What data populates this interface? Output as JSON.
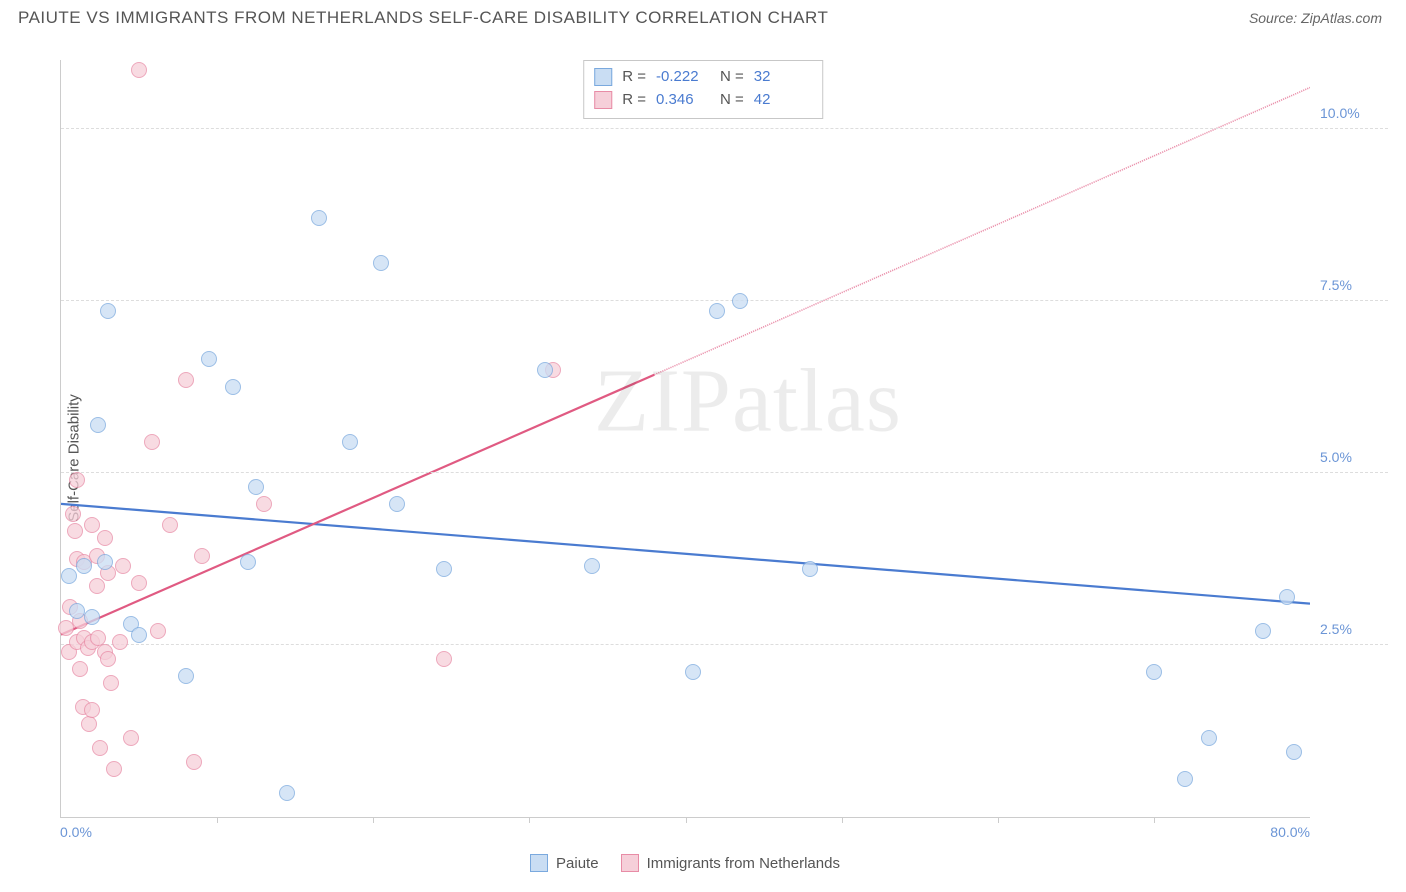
{
  "header": {
    "title": "PAIUTE VS IMMIGRANTS FROM NETHERLANDS SELF-CARE DISABILITY CORRELATION CHART",
    "source": "Source: ZipAtlas.com"
  },
  "chart": {
    "type": "scatter",
    "ylabel": "Self-Care Disability",
    "watermark": "ZIPatlas",
    "background_color": "#ffffff",
    "grid_color": "#dddddd",
    "axis_color": "#cccccc",
    "tick_label_color": "#6b95d6",
    "text_color": "#555555",
    "xlim": [
      0,
      80
    ],
    "ylim": [
      0,
      11
    ],
    "xticks": [
      {
        "pos": 0,
        "label": "0.0%"
      },
      {
        "pos": 80,
        "label": "80.0%"
      }
    ],
    "xtick_marks": [
      10,
      20,
      30,
      40,
      50,
      60,
      70
    ],
    "yticks": [
      {
        "pos": 2.5,
        "label": "2.5%"
      },
      {
        "pos": 5.0,
        "label": "5.0%"
      },
      {
        "pos": 7.5,
        "label": "7.5%"
      },
      {
        "pos": 10.0,
        "label": "10.0%"
      }
    ],
    "series": [
      {
        "name": "Paiute",
        "fill": "#c9ddf3",
        "stroke": "#7aa9de",
        "line_color": "#4a7bd0",
        "r_value": "-0.222",
        "n_value": "32",
        "trend": {
          "x1": 0,
          "y1": 4.55,
          "x2": 80,
          "y2": 3.1,
          "dash_from_x": 80
        },
        "points": [
          [
            0.5,
            3.5
          ],
          [
            1.0,
            3.0
          ],
          [
            1.5,
            3.65
          ],
          [
            2.0,
            2.9
          ],
          [
            2.4,
            5.7
          ],
          [
            2.8,
            3.7
          ],
          [
            3.0,
            7.35
          ],
          [
            4.5,
            2.8
          ],
          [
            5.0,
            2.65
          ],
          [
            8.0,
            2.05
          ],
          [
            9.5,
            6.65
          ],
          [
            11.0,
            6.25
          ],
          [
            12.0,
            3.7
          ],
          [
            12.5,
            4.8
          ],
          [
            14.5,
            0.35
          ],
          [
            16.5,
            8.7
          ],
          [
            18.5,
            5.45
          ],
          [
            20.5,
            8.05
          ],
          [
            21.5,
            4.55
          ],
          [
            24.5,
            3.6
          ],
          [
            31.0,
            6.5
          ],
          [
            34.0,
            3.65
          ],
          [
            40.5,
            2.1
          ],
          [
            42.0,
            7.35
          ],
          [
            43.5,
            7.5
          ],
          [
            48.0,
            3.6
          ],
          [
            70.0,
            2.1
          ],
          [
            72.0,
            0.55
          ],
          [
            73.5,
            1.15
          ],
          [
            77.0,
            2.7
          ],
          [
            78.5,
            3.2
          ],
          [
            79.0,
            0.95
          ]
        ]
      },
      {
        "name": "Immigrants from Netherlands",
        "fill": "#f6cfd9",
        "stroke": "#e88ca6",
        "line_color": "#e05a82",
        "r_value": "0.346",
        "n_value": "42",
        "trend": {
          "x1": 0,
          "y1": 2.65,
          "x2": 80,
          "y2": 10.6,
          "dash_from_x": 38
        },
        "points": [
          [
            0.3,
            2.75
          ],
          [
            0.5,
            2.4
          ],
          [
            0.6,
            3.05
          ],
          [
            0.8,
            4.4
          ],
          [
            0.9,
            4.15
          ],
          [
            1.0,
            2.55
          ],
          [
            1.0,
            4.9
          ],
          [
            1.0,
            3.75
          ],
          [
            1.2,
            2.85
          ],
          [
            1.2,
            2.15
          ],
          [
            1.4,
            1.6
          ],
          [
            1.5,
            2.6
          ],
          [
            1.5,
            3.7
          ],
          [
            1.7,
            2.45
          ],
          [
            1.8,
            1.35
          ],
          [
            2.0,
            2.55
          ],
          [
            2.0,
            4.25
          ],
          [
            2.0,
            1.55
          ],
          [
            2.3,
            3.8
          ],
          [
            2.3,
            3.35
          ],
          [
            2.4,
            2.6
          ],
          [
            2.5,
            1.0
          ],
          [
            2.8,
            2.4
          ],
          [
            2.8,
            4.05
          ],
          [
            3.0,
            3.55
          ],
          [
            3.0,
            2.3
          ],
          [
            3.2,
            1.95
          ],
          [
            3.4,
            0.7
          ],
          [
            3.8,
            2.55
          ],
          [
            4.0,
            3.65
          ],
          [
            4.5,
            1.15
          ],
          [
            5.0,
            10.85
          ],
          [
            5.0,
            3.4
          ],
          [
            5.8,
            5.45
          ],
          [
            6.2,
            2.7
          ],
          [
            7.0,
            4.25
          ],
          [
            8.0,
            6.35
          ],
          [
            8.5,
            0.8
          ],
          [
            9.0,
            3.8
          ],
          [
            13.0,
            4.55
          ],
          [
            24.5,
            2.3
          ],
          [
            31.5,
            6.5
          ]
        ]
      }
    ],
    "legend": {
      "items": [
        {
          "label": "Paiute",
          "series": 0
        },
        {
          "label": "Immigrants from Netherlands",
          "series": 1
        }
      ]
    },
    "stats_box": {
      "r_label": "R =",
      "n_label": "N ="
    }
  }
}
